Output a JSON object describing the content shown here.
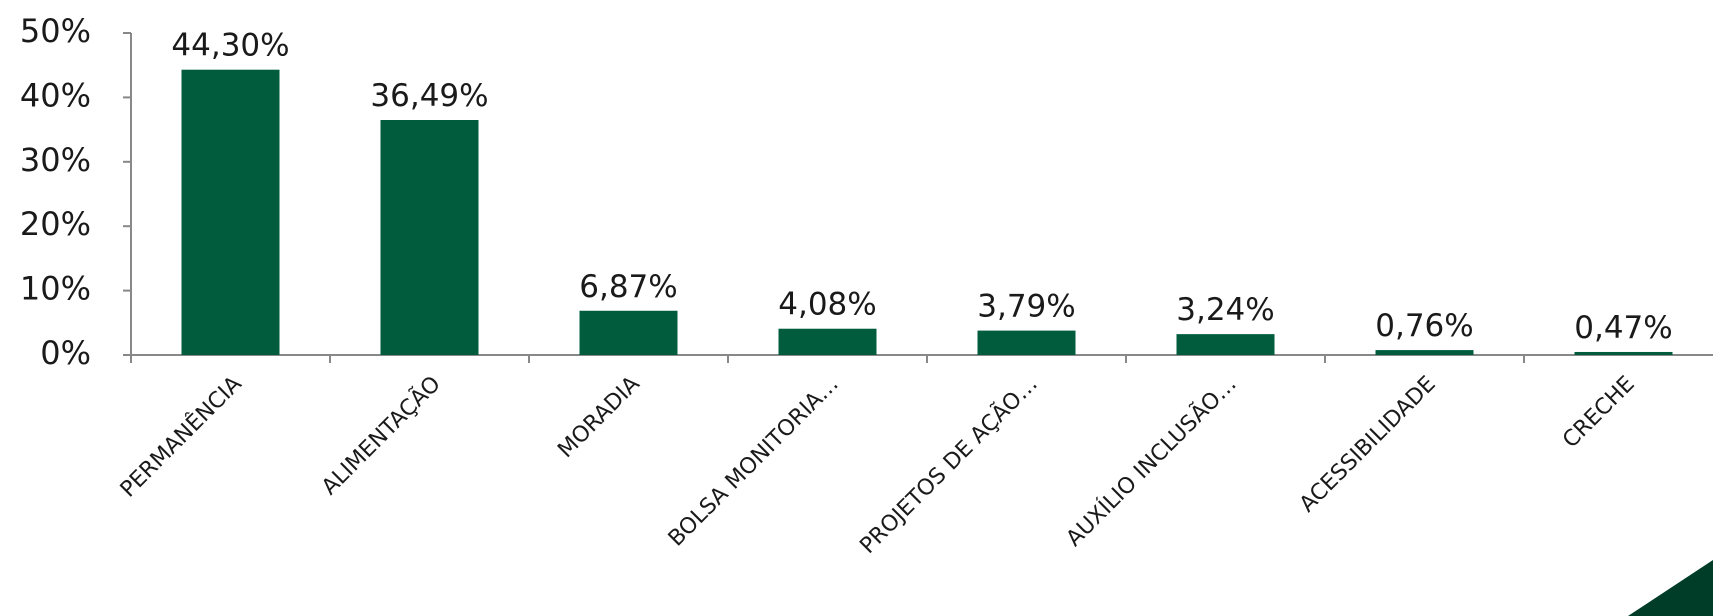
{
  "chart_data": {
    "type": "bar",
    "categories": [
      "PERMANÊNCIA",
      "ALIMENTAÇÃO",
      "MORADIA",
      "BOLSA MONITORIA…",
      "PROJETOS DE AÇÃO…",
      "AUXÍLIO INCLUSÃO…",
      "ACESSIBILIDADE",
      "CRECHE"
    ],
    "values": [
      44.3,
      36.49,
      6.87,
      4.08,
      3.79,
      3.24,
      0.76,
      0.47
    ],
    "value_labels": [
      "44,30%",
      "36,49%",
      "6,87%",
      "4,08%",
      "3,79%",
      "3,24%",
      "0,76%",
      "0,47%"
    ],
    "color": "#005c3c",
    "ylim": [
      0,
      50
    ],
    "yticks": [
      {
        "value": 0,
        "label": "0%"
      },
      {
        "value": 10,
        "label": "10%"
      },
      {
        "value": 20,
        "label": "20%"
      },
      {
        "value": 30,
        "label": "30%"
      },
      {
        "value": 40,
        "label": "40%"
      },
      {
        "value": 50,
        "label": "50%"
      }
    ],
    "grid": false
  }
}
